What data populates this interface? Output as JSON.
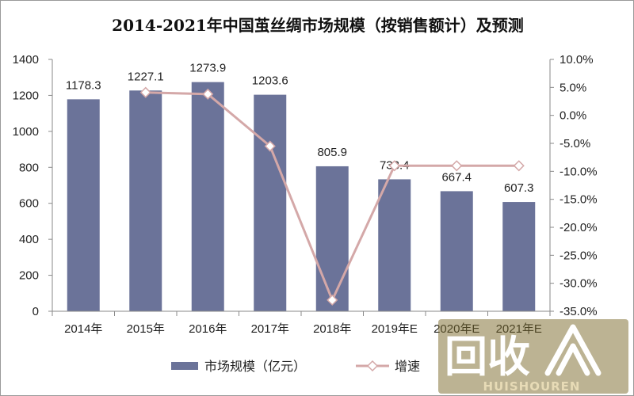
{
  "chart_data": {
    "type": "bar",
    "title": "2014-2021年中国茧丝绸市场规模（按销售额计）及预测",
    "categories": [
      "2014年",
      "2015年",
      "2016年",
      "2017年",
      "2018年",
      "2019年E",
      "2020年E",
      "2021年E"
    ],
    "series": [
      {
        "name": "市场规模（亿元）",
        "type": "bar",
        "axis": "left",
        "values": [
          1178.3,
          1227.1,
          1273.9,
          1203.6,
          805.9,
          733.4,
          667.4,
          607.3
        ]
      },
      {
        "name": "增速",
        "type": "line",
        "axis": "right",
        "values": [
          null,
          4.1,
          3.8,
          -5.5,
          -33.0,
          -9.0,
          -9.0,
          -9.0
        ]
      }
    ],
    "y_left": {
      "min": 0,
      "max": 1400,
      "step": 200,
      "ticks": [
        "0",
        "200",
        "400",
        "600",
        "800",
        "1000",
        "1200",
        "1400"
      ]
    },
    "y_right": {
      "min": -35,
      "max": 10,
      "step": 5,
      "ticks": [
        "-35.0%",
        "-30.0%",
        "-25.0%",
        "-20.0%",
        "-15.0%",
        "-10.0%",
        "-5.0%",
        "0.0%",
        "5.0%",
        "10.0%"
      ]
    },
    "data_labels": [
      "1178.3",
      "1227.1",
      "1273.9",
      "1203.6",
      "805.9",
      "733.4",
      "667.4",
      "607.3"
    ],
    "legend_position": "bottom",
    "grid": false,
    "colors": {
      "bar": "#6b7399",
      "line": "#d4a8a8",
      "marker_fill": "#ffffff"
    }
  },
  "watermark": {
    "logo_text": "回收",
    "sub_text": "HUISHOUREN",
    "icon": "recycle-a-icon"
  }
}
